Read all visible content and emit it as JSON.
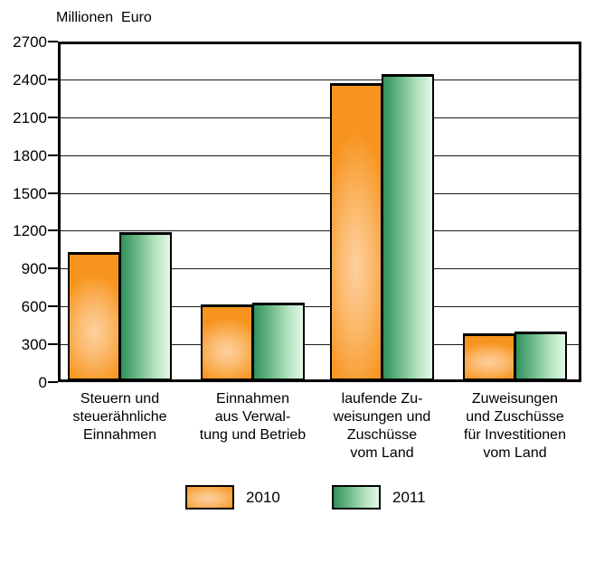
{
  "title": "Millionen  Euro",
  "colors": {
    "background": "#ffffff",
    "frame": "#000000",
    "gridline": "#1a1a1a",
    "bar_2010_edge": "#f7941e",
    "bar_2010_highlight": "#fdd0a0",
    "bar_2011_dark": "#30915c",
    "bar_2011_light": "#e3f7e6"
  },
  "chart_data": {
    "type": "bar",
    "title": "Millionen  Euro",
    "ylabel": "Millionen Euro",
    "xlabel": "",
    "ylim": [
      0,
      2700
    ],
    "ytick_interval": 300,
    "yticks": [
      0,
      300,
      600,
      900,
      1200,
      1500,
      1800,
      2100,
      2400,
      2700
    ],
    "grid": "horizontal",
    "legend_position": "bottom",
    "categories": [
      [
        "Steuern und",
        "steuerähnliche",
        "Einnahmen"
      ],
      [
        "Einnahmen",
        "aus Verwal-",
        "tung und Betrieb"
      ],
      [
        "laufende Zu-",
        "weisungen und",
        "Zuschüsse",
        "vom Land"
      ],
      [
        "Zuweisungen",
        "und Zuschüsse",
        "für Investitionen",
        "vom Land"
      ]
    ],
    "series": [
      {
        "name": "2010",
        "values": [
          1020,
          600,
          2355,
          370
        ]
      },
      {
        "name": "2011",
        "values": [
          1175,
          615,
          2430,
          385
        ]
      }
    ]
  },
  "legend": {
    "items": [
      {
        "label": "2010"
      },
      {
        "label": "2011"
      }
    ]
  }
}
